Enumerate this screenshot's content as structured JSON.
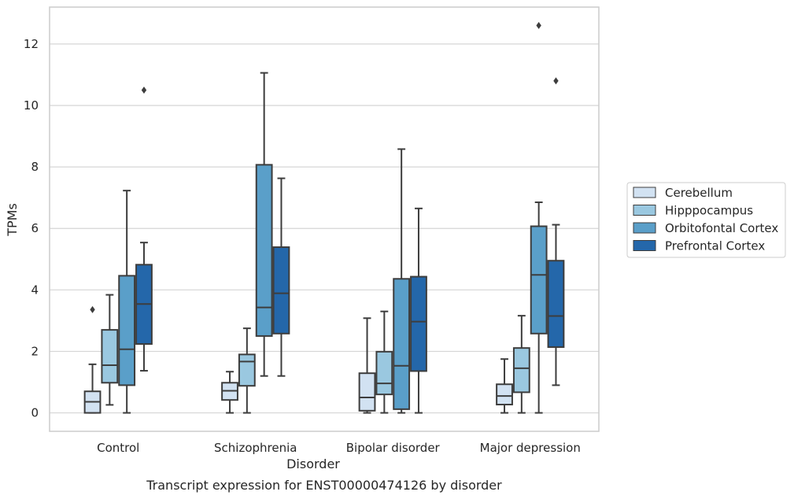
{
  "caption": "Transcript expression for ENST00000474126 by disorder",
  "chart_data": {
    "type": "boxplot",
    "xlabel": "Disorder",
    "ylabel": "TPMs",
    "ylim": [
      -0.6,
      13.2
    ],
    "yticks": [
      0,
      2,
      4,
      6,
      8,
      10,
      12
    ],
    "grid": "horizontal",
    "legend_position": "right",
    "categories": [
      "Control",
      "Schizophrenia",
      "Bipolar disorder",
      "Major depression"
    ],
    "series": [
      {
        "name": "Cerebellum",
        "color": "#d2e2f2",
        "boxes": [
          {
            "whislo": 0.0,
            "q1": 0.0,
            "med": 0.36,
            "q3": 0.7,
            "whishi": 1.58,
            "fliers": [
              3.36
            ]
          },
          {
            "whislo": 0.0,
            "q1": 0.42,
            "med": 0.72,
            "q3": 0.98,
            "whishi": 1.34,
            "fliers": []
          },
          {
            "whislo": 0.0,
            "q1": 0.07,
            "med": 0.5,
            "q3": 1.29,
            "whishi": 3.08,
            "fliers": []
          },
          {
            "whislo": 0.0,
            "q1": 0.27,
            "med": 0.55,
            "q3": 0.93,
            "whishi": 1.75,
            "fliers": []
          }
        ]
      },
      {
        "name": "Hipppocampus",
        "color": "#9ac8e0",
        "boxes": [
          {
            "whislo": 0.26,
            "q1": 0.98,
            "med": 1.55,
            "q3": 2.7,
            "whishi": 3.84,
            "fliers": []
          },
          {
            "whislo": 0.0,
            "q1": 0.88,
            "med": 1.67,
            "q3": 1.9,
            "whishi": 2.75,
            "fliers": []
          },
          {
            "whislo": 0.0,
            "q1": 0.6,
            "med": 0.96,
            "q3": 1.99,
            "whishi": 3.3,
            "fliers": []
          },
          {
            "whislo": 0.0,
            "q1": 0.67,
            "med": 1.45,
            "q3": 2.11,
            "whishi": 3.16,
            "fliers": []
          }
        ]
      },
      {
        "name": "Orbitofontal Cortex",
        "color": "#5a9fc9",
        "boxes": [
          {
            "whislo": 0.0,
            "q1": 0.9,
            "med": 2.07,
            "q3": 4.46,
            "whishi": 7.23,
            "fliers": []
          },
          {
            "whislo": 1.2,
            "q1": 2.5,
            "med": 3.43,
            "q3": 8.07,
            "whishi": 11.06,
            "fliers": []
          },
          {
            "whislo": 0.0,
            "q1": 0.12,
            "med": 1.53,
            "q3": 4.36,
            "whishi": 8.58,
            "fliers": []
          },
          {
            "whislo": 0.0,
            "q1": 2.58,
            "med": 4.49,
            "q3": 6.07,
            "whishi": 6.85,
            "fliers": [
              12.6
            ]
          }
        ]
      },
      {
        "name": "Prefrontal Cortex",
        "color": "#2467aa",
        "boxes": [
          {
            "whislo": 1.37,
            "q1": 2.24,
            "med": 3.54,
            "q3": 4.82,
            "whishi": 5.54,
            "fliers": [
              10.5
            ]
          },
          {
            "whislo": 1.2,
            "q1": 2.58,
            "med": 3.89,
            "q3": 5.39,
            "whishi": 7.63,
            "fliers": []
          },
          {
            "whislo": 0.0,
            "q1": 1.36,
            "med": 2.97,
            "q3": 4.43,
            "whishi": 6.65,
            "fliers": []
          },
          {
            "whislo": 0.9,
            "q1": 2.14,
            "med": 3.15,
            "q3": 4.95,
            "whishi": 6.12,
            "fliers": [
              10.8
            ]
          }
        ]
      }
    ]
  }
}
